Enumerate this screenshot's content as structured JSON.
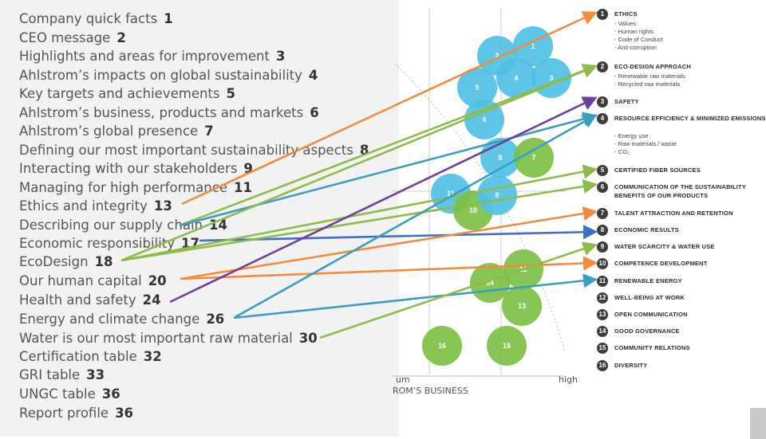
{
  "toc": [
    {
      "label": "Company quick facts",
      "num": "1"
    },
    {
      "label": "CEO message",
      "num": "2"
    },
    {
      "label": "Highlights and areas for improvement",
      "num": "3"
    },
    {
      "label": "Ahlstrom’s impacts on global sustainability",
      "num": "4"
    },
    {
      "label": "Key targets and achievements",
      "num": "5"
    },
    {
      "label": "Ahlstrom’s business, products and markets",
      "num": "6"
    },
    {
      "label": "Ahlstrom’s global presence",
      "num": "7"
    },
    {
      "label": "Defining our most important sustainability aspects",
      "num": "8"
    },
    {
      "label": "Interacting with our stakeholders",
      "num": "9"
    },
    {
      "label": "Managing for high performance",
      "num": "11"
    },
    {
      "label": "Ethics and integrity",
      "num": "13"
    },
    {
      "label": "Describing our supply chain",
      "num": "14"
    },
    {
      "label": "Economic responsibility",
      "num": "17"
    },
    {
      "label": "EcoDesign",
      "num": "18"
    },
    {
      "label": "Our human capital",
      "num": "20"
    },
    {
      "label": "Health and safety",
      "num": "24"
    },
    {
      "label": "Energy and climate change",
      "num": "26"
    },
    {
      "label": "Water is our most important raw material",
      "num": "30"
    },
    {
      "label": "Certification table",
      "num": "32"
    },
    {
      "label": "GRI table",
      "num": "33"
    },
    {
      "label": "UNGC table",
      "num": "36"
    },
    {
      "label": "Report profile",
      "num": "36"
    }
  ],
  "chart": {
    "axis_low": "um",
    "axis_high": "high",
    "axis_title": "ROM’S BUSINESS",
    "bubbles": [
      {
        "label": "2",
        "color": "blue"
      },
      {
        "label": "1",
        "color": "blue"
      },
      {
        "label": "4",
        "color": "blue"
      },
      {
        "label": "3",
        "color": "blue"
      },
      {
        "label": "5",
        "color": "blue"
      },
      {
        "label": "6",
        "color": "blue"
      },
      {
        "label": "8",
        "color": "blue"
      },
      {
        "label": "7",
        "color": "green"
      },
      {
        "label": "11",
        "color": "blue"
      },
      {
        "label": "10",
        "color": "green"
      },
      {
        "label": "9",
        "color": "blue"
      },
      {
        "label": "12",
        "color": "green"
      },
      {
        "label": "14",
        "color": "green"
      },
      {
        "label": "13",
        "color": "green"
      },
      {
        "label": "16",
        "color": "green"
      },
      {
        "label": "15",
        "color": "green"
      }
    ]
  },
  "topics": [
    {
      "num": "1",
      "title": "ETHICS",
      "subs": [
        "- Values",
        "- Human rights",
        "- Code of Conduct",
        "- Anti-corruption"
      ]
    },
    {
      "num": "2",
      "title": "ECO-DESIGN APPROACH",
      "subs": [
        "- Renewable raw materials",
        "- Recycled raw materials"
      ]
    },
    {
      "num": "3",
      "title": "SAFETY",
      "subs": []
    },
    {
      "num": "4",
      "title": "RESOURCE EFFICIENCY & MINIMIZED EMISSIONS",
      "subs": [
        "- Energy use",
        "- Raw materials / waste",
        "- CO₂"
      ]
    },
    {
      "num": "5",
      "title": "CERTIFIED FIBER SOURCES",
      "subs": []
    },
    {
      "num": "6",
      "title": "COMMUNICATION OF THE SUSTAINABILITY BENEFITS OF OUR PRODUCTS",
      "subs": []
    },
    {
      "num": "7",
      "title": "TALENT ATTRACTION AND RETENTION",
      "subs": []
    },
    {
      "num": "8",
      "title": "ECONOMIC RESULTS",
      "subs": []
    },
    {
      "num": "9",
      "title": "WATER SCARCITY & WATER USE",
      "subs": []
    },
    {
      "num": "10",
      "title": "COMPETENCE DEVELOPMENT",
      "subs": []
    },
    {
      "num": "11",
      "title": "RENEWABLE ENERGY",
      "subs": []
    },
    {
      "num": "12",
      "title": "WELL-BEING AT WORK",
      "subs": []
    },
    {
      "num": "13",
      "title": "OPEN COMMUNICATION",
      "subs": []
    },
    {
      "num": "14",
      "title": "GOOD GOVERNANCE",
      "subs": []
    },
    {
      "num": "15",
      "title": "COMMUNITY RELATIONS",
      "subs": []
    },
    {
      "num": "16",
      "title": "DIVERSITY",
      "subs": []
    }
  ],
  "colors": {
    "blue_bubble": "#4fc0e4",
    "green_bubble": "#7ac043",
    "arrow_orange": "#f08c3c",
    "arrow_green": "#8dbb4c",
    "arrow_teal": "#3a9ec2",
    "arrow_purple": "#6e3f9a",
    "arrow_blue": "#3f6fc4"
  },
  "arrows": [
    {
      "from": "Ethics and integrity",
      "to": "ETHICS",
      "color": "orange"
    },
    {
      "from": "Describing our supply chain",
      "to": "ECO-DESIGN APPROACH",
      "color": "green"
    },
    {
      "from": "Describing our supply chain",
      "to": "RESOURCE EFFICIENCY & MINIMIZED EMISSIONS",
      "color": "teal"
    },
    {
      "from": "Economic responsibility",
      "to": "ECONOMIC RESULTS",
      "color": "blue"
    },
    {
      "from": "EcoDesign",
      "to": "ECO-DESIGN APPROACH",
      "color": "green"
    },
    {
      "from": "EcoDesign",
      "to": "CERTIFIED FIBER SOURCES",
      "color": "green"
    },
    {
      "from": "EcoDesign",
      "to": "COMMUNICATION OF THE SUSTAINABILITY BENEFITS OF OUR PRODUCTS",
      "color": "green"
    },
    {
      "from": "Our human capital",
      "to": "TALENT ATTRACTION AND RETENTION",
      "color": "orange"
    },
    {
      "from": "Our human capital",
      "to": "COMPETENCE DEVELOPMENT",
      "color": "orange"
    },
    {
      "from": "Health and safety",
      "to": "SAFETY",
      "color": "purple"
    },
    {
      "from": "Energy and climate change",
      "to": "RESOURCE EFFICIENCY & MINIMIZED EMISSIONS",
      "color": "teal"
    },
    {
      "from": "Energy and climate change",
      "to": "RENEWABLE ENERGY",
      "color": "teal"
    },
    {
      "from": "Water is our most important raw material",
      "to": "WATER SCARCITY & WATER USE",
      "color": "green"
    }
  ]
}
